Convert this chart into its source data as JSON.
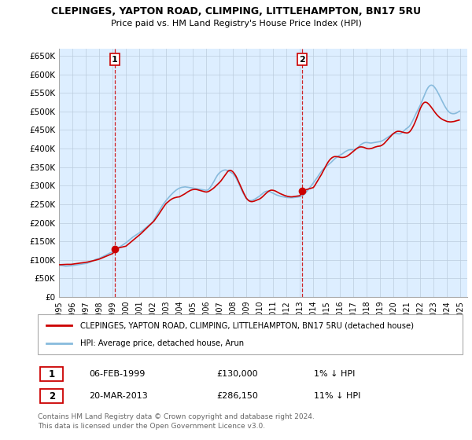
{
  "title": "CLEPINGES, YAPTON ROAD, CLIMPING, LITTLEHAMPTON, BN17 5RU",
  "subtitle": "Price paid vs. HM Land Registry's House Price Index (HPI)",
  "legend_line1": "CLEPINGES, YAPTON ROAD, CLIMPING, LITTLEHAMPTON, BN17 5RU (detached house)",
  "legend_line2": "HPI: Average price, detached house, Arun",
  "footer1": "Contains HM Land Registry data © Crown copyright and database right 2024.",
  "footer2": "This data is licensed under the Open Government Licence v3.0.",
  "annotation1": {
    "label": "1",
    "date": "06-FEB-1999",
    "price": "£130,000",
    "hpi": "1% ↓ HPI"
  },
  "annotation2": {
    "label": "2",
    "date": "20-MAR-2013",
    "price": "£286,150",
    "hpi": "11% ↓ HPI"
  },
  "ytick_labels": [
    "£0",
    "£50K",
    "£100K",
    "£150K",
    "£200K",
    "£250K",
    "£300K",
    "£350K",
    "£400K",
    "£450K",
    "£500K",
    "£550K",
    "£600K",
    "£650K"
  ],
  "ytick_values": [
    0,
    50000,
    100000,
    150000,
    200000,
    250000,
    300000,
    350000,
    400000,
    450000,
    500000,
    550000,
    600000,
    650000
  ],
  "ylim": [
    0,
    670000
  ],
  "xlim_start": 1995.0,
  "xlim_end": 2025.5,
  "price_line_color": "#cc0000",
  "hpi_line_color": "#88bbdd",
  "plot_bg_color": "#ddeeff",
  "background_color": "#ffffff",
  "grid_color": "#bbccdd",
  "annotation_box_color": "#cc0000",
  "hpi_data_years": [
    1995.0,
    1995.083,
    1995.167,
    1995.25,
    1995.333,
    1995.417,
    1995.5,
    1995.583,
    1995.667,
    1995.75,
    1995.833,
    1995.917,
    1996.0,
    1996.083,
    1996.167,
    1996.25,
    1996.333,
    1996.417,
    1996.5,
    1996.583,
    1996.667,
    1996.75,
    1996.833,
    1996.917,
    1997.0,
    1997.083,
    1997.167,
    1997.25,
    1997.333,
    1997.417,
    1997.5,
    1997.583,
    1997.667,
    1997.75,
    1997.833,
    1997.917,
    1998.0,
    1998.083,
    1998.167,
    1998.25,
    1998.333,
    1998.417,
    1998.5,
    1998.583,
    1998.667,
    1998.75,
    1998.833,
    1998.917,
    1999.0,
    1999.083,
    1999.167,
    1999.25,
    1999.333,
    1999.417,
    1999.5,
    1999.583,
    1999.667,
    1999.75,
    1999.833,
    1999.917,
    2000.0,
    2000.083,
    2000.167,
    2000.25,
    2000.333,
    2000.417,
    2000.5,
    2000.583,
    2000.667,
    2000.75,
    2000.833,
    2000.917,
    2001.0,
    2001.083,
    2001.167,
    2001.25,
    2001.333,
    2001.417,
    2001.5,
    2001.583,
    2001.667,
    2001.75,
    2001.833,
    2001.917,
    2002.0,
    2002.083,
    2002.167,
    2002.25,
    2002.333,
    2002.417,
    2002.5,
    2002.583,
    2002.667,
    2002.75,
    2002.833,
    2002.917,
    2003.0,
    2003.083,
    2003.167,
    2003.25,
    2003.333,
    2003.417,
    2003.5,
    2003.583,
    2003.667,
    2003.75,
    2003.833,
    2003.917,
    2004.0,
    2004.083,
    2004.167,
    2004.25,
    2004.333,
    2004.417,
    2004.5,
    2004.583,
    2004.667,
    2004.75,
    2004.833,
    2004.917,
    2005.0,
    2005.083,
    2005.167,
    2005.25,
    2005.333,
    2005.417,
    2005.5,
    2005.583,
    2005.667,
    2005.75,
    2005.833,
    2005.917,
    2006.0,
    2006.083,
    2006.167,
    2006.25,
    2006.333,
    2006.417,
    2006.5,
    2006.583,
    2006.667,
    2006.75,
    2006.833,
    2006.917,
    2007.0,
    2007.083,
    2007.167,
    2007.25,
    2007.333,
    2007.417,
    2007.5,
    2007.583,
    2007.667,
    2007.75,
    2007.833,
    2007.917,
    2008.0,
    2008.083,
    2008.167,
    2008.25,
    2008.333,
    2008.417,
    2008.5,
    2008.583,
    2008.667,
    2008.75,
    2008.833,
    2008.917,
    2009.0,
    2009.083,
    2009.167,
    2009.25,
    2009.333,
    2009.417,
    2009.5,
    2009.583,
    2009.667,
    2009.75,
    2009.833,
    2009.917,
    2010.0,
    2010.083,
    2010.167,
    2010.25,
    2010.333,
    2010.417,
    2010.5,
    2010.583,
    2010.667,
    2010.75,
    2010.833,
    2010.917,
    2011.0,
    2011.083,
    2011.167,
    2011.25,
    2011.333,
    2011.417,
    2011.5,
    2011.583,
    2011.667,
    2011.75,
    2011.833,
    2011.917,
    2012.0,
    2012.083,
    2012.167,
    2012.25,
    2012.333,
    2012.417,
    2012.5,
    2012.583,
    2012.667,
    2012.75,
    2012.833,
    2012.917,
    2013.0,
    2013.083,
    2013.167,
    2013.25,
    2013.333,
    2013.417,
    2013.5,
    2013.583,
    2013.667,
    2013.75,
    2013.833,
    2013.917,
    2014.0,
    2014.083,
    2014.167,
    2014.25,
    2014.333,
    2014.417,
    2014.5,
    2014.583,
    2014.667,
    2014.75,
    2014.833,
    2014.917,
    2015.0,
    2015.083,
    2015.167,
    2015.25,
    2015.333,
    2015.417,
    2015.5,
    2015.583,
    2015.667,
    2015.75,
    2015.833,
    2015.917,
    2016.0,
    2016.083,
    2016.167,
    2016.25,
    2016.333,
    2016.417,
    2016.5,
    2016.583,
    2016.667,
    2016.75,
    2016.833,
    2016.917,
    2017.0,
    2017.083,
    2017.167,
    2017.25,
    2017.333,
    2017.417,
    2017.5,
    2017.583,
    2017.667,
    2017.75,
    2017.833,
    2017.917,
    2018.0,
    2018.083,
    2018.167,
    2018.25,
    2018.333,
    2018.417,
    2018.5,
    2018.583,
    2018.667,
    2018.75,
    2018.833,
    2018.917,
    2019.0,
    2019.083,
    2019.167,
    2019.25,
    2019.333,
    2019.417,
    2019.5,
    2019.583,
    2019.667,
    2019.75,
    2019.833,
    2019.917,
    2020.0,
    2020.083,
    2020.167,
    2020.25,
    2020.333,
    2020.417,
    2020.5,
    2020.583,
    2020.667,
    2020.75,
    2020.833,
    2020.917,
    2021.0,
    2021.083,
    2021.167,
    2021.25,
    2021.333,
    2021.417,
    2021.5,
    2021.583,
    2021.667,
    2021.75,
    2021.833,
    2021.917,
    2022.0,
    2022.083,
    2022.167,
    2022.25,
    2022.333,
    2022.417,
    2022.5,
    2022.583,
    2022.667,
    2022.75,
    2022.833,
    2022.917,
    2023.0,
    2023.083,
    2023.167,
    2023.25,
    2023.333,
    2023.417,
    2023.5,
    2023.583,
    2023.667,
    2023.75,
    2023.833,
    2023.917,
    2024.0,
    2024.083,
    2024.167,
    2024.25,
    2024.333,
    2024.417,
    2024.5,
    2024.583,
    2024.667,
    2024.75,
    2024.833,
    2024.917
  ],
  "hpi_data_values": [
    86000,
    85500,
    85000,
    84500,
    84000,
    83500,
    83000,
    83200,
    83500,
    83800,
    84000,
    84200,
    84500,
    85000,
    85500,
    86000,
    86500,
    87000,
    87500,
    88000,
    88500,
    89000,
    89500,
    90000,
    90500,
    91000,
    92000,
    93000,
    94000,
    95500,
    97000,
    98500,
    100000,
    101500,
    102500,
    103000,
    104000,
    105500,
    107000,
    108500,
    110000,
    111500,
    113000,
    114500,
    116000,
    117500,
    119000,
    120000,
    121000,
    123000,
    125000,
    127500,
    130000,
    132000,
    134000,
    136000,
    138000,
    140000,
    142000,
    144000,
    146000,
    148500,
    151000,
    153500,
    156000,
    158500,
    161000,
    163000,
    165000,
    167000,
    169000,
    171000,
    173000,
    175000,
    177000,
    179500,
    182000,
    184500,
    187000,
    189500,
    192000,
    194500,
    197000,
    199500,
    202000,
    207000,
    212000,
    217500,
    223000,
    228000,
    233000,
    238000,
    243000,
    248000,
    252000,
    256000,
    260000,
    263500,
    267000,
    270500,
    274000,
    277000,
    280000,
    283000,
    285500,
    288000,
    290000,
    292000,
    293500,
    294500,
    295500,
    296000,
    296500,
    296800,
    296500,
    296000,
    295500,
    295000,
    294500,
    294000,
    293500,
    293000,
    292500,
    292000,
    291500,
    291000,
    290500,
    290000,
    289500,
    289000,
    288500,
    288000,
    287500,
    288000,
    290000,
    293000,
    297000,
    302000,
    307000,
    312000,
    318000,
    323000,
    328000,
    332000,
    335000,
    337500,
    339500,
    341000,
    342000,
    342500,
    342000,
    341000,
    339500,
    338000,
    336000,
    334000,
    332000,
    328000,
    324000,
    319000,
    313000,
    307000,
    300000,
    293000,
    286500,
    280000,
    275000,
    270000,
    266000,
    263000,
    261000,
    260000,
    260000,
    260500,
    261500,
    263000,
    264500,
    266500,
    268500,
    270500,
    272500,
    275000,
    277500,
    280000,
    282500,
    284000,
    285000,
    285500,
    285000,
    284000,
    282500,
    281000,
    279500,
    278000,
    276500,
    275000,
    274000,
    273000,
    272000,
    271000,
    270500,
    270000,
    269500,
    269000,
    268500,
    268000,
    267800,
    267700,
    267600,
    267700,
    267900,
    268200,
    268500,
    269000,
    269500,
    270000,
    270500,
    271500,
    273000,
    275000,
    277500,
    280500,
    284000,
    287500,
    291500,
    295500,
    299500,
    303500,
    307500,
    311500,
    316000,
    320000,
    324500,
    329000,
    333500,
    337500,
    341500,
    345000,
    348000,
    351000,
    353000,
    355500,
    358000,
    360500,
    363000,
    366000,
    369000,
    372000,
    374500,
    377000,
    379000,
    381000,
    382500,
    384000,
    386000,
    388000,
    390500,
    392500,
    394000,
    395500,
    396500,
    397000,
    397200,
    397000,
    396500,
    397000,
    398500,
    400500,
    403000,
    406000,
    409000,
    411500,
    413500,
    415000,
    416000,
    416500,
    416500,
    416000,
    415500,
    415000,
    415000,
    415500,
    416000,
    416500,
    417000,
    417500,
    418000,
    418500,
    419000,
    420000,
    421500,
    423000,
    425000,
    427000,
    429000,
    431000,
    433000,
    435000,
    437000,
    439000,
    440500,
    441000,
    441000,
    440500,
    440000,
    439500,
    440000,
    441500,
    444000,
    447000,
    450000,
    453000,
    455000,
    457000,
    460000,
    464000,
    469000,
    475000,
    481000,
    487500,
    494000,
    500000,
    506000,
    512000,
    518000,
    525000,
    532000,
    539500,
    547000,
    554000,
    560000,
    565000,
    568500,
    570500,
    571000,
    570000,
    567500,
    564000,
    559500,
    554500,
    549000,
    543000,
    537000,
    531000,
    525000,
    519000,
    513500,
    508500,
    504000,
    500500,
    497500,
    495500,
    494500,
    494000,
    494000,
    494500,
    495500,
    497000,
    499000,
    501000
  ],
  "price_data_years": [
    1995.0,
    1995.1,
    1995.2,
    1995.3,
    1995.4,
    1995.5,
    1995.6,
    1995.7,
    1995.8,
    1995.9,
    1996.0,
    1996.1,
    1996.2,
    1996.3,
    1996.4,
    1996.5,
    1996.6,
    1996.7,
    1996.8,
    1996.9,
    1997.0,
    1997.1,
    1997.2,
    1997.3,
    1997.4,
    1997.5,
    1997.6,
    1997.7,
    1997.8,
    1997.9,
    1998.0,
    1998.1,
    1998.2,
    1998.3,
    1998.4,
    1998.5,
    1998.6,
    1998.7,
    1998.8,
    1998.9,
    1999.0,
    1999.083,
    1999.167,
    2000.0,
    2000.1,
    2000.2,
    2000.3,
    2000.4,
    2000.5,
    2000.6,
    2000.7,
    2000.8,
    2000.9,
    2001.0,
    2001.1,
    2001.2,
    2001.3,
    2001.4,
    2001.5,
    2001.6,
    2001.7,
    2001.8,
    2001.9,
    2002.0,
    2002.1,
    2002.2,
    2002.3,
    2002.4,
    2002.5,
    2002.6,
    2002.7,
    2002.8,
    2002.9,
    2003.0,
    2003.1,
    2003.2,
    2003.3,
    2003.4,
    2003.5,
    2003.6,
    2003.7,
    2003.8,
    2003.9,
    2004.0,
    2004.1,
    2004.2,
    2004.3,
    2004.4,
    2004.5,
    2004.6,
    2004.7,
    2004.8,
    2004.9,
    2005.0,
    2005.1,
    2005.2,
    2005.3,
    2005.4,
    2005.5,
    2005.6,
    2005.7,
    2005.8,
    2005.9,
    2006.0,
    2006.1,
    2006.2,
    2006.3,
    2006.4,
    2006.5,
    2006.6,
    2006.7,
    2006.8,
    2006.9,
    2007.0,
    2007.1,
    2007.2,
    2007.3,
    2007.4,
    2007.5,
    2007.6,
    2007.7,
    2007.8,
    2007.9,
    2008.0,
    2008.1,
    2008.2,
    2008.3,
    2008.4,
    2008.5,
    2008.6,
    2008.7,
    2008.8,
    2008.9,
    2009.0,
    2009.1,
    2009.2,
    2009.3,
    2009.4,
    2009.5,
    2009.6,
    2009.7,
    2009.8,
    2009.9,
    2010.0,
    2010.1,
    2010.2,
    2010.3,
    2010.4,
    2010.5,
    2010.6,
    2010.7,
    2010.8,
    2010.9,
    2011.0,
    2011.1,
    2011.2,
    2011.3,
    2011.4,
    2011.5,
    2011.6,
    2011.7,
    2011.8,
    2011.9,
    2012.0,
    2012.1,
    2012.2,
    2012.3,
    2012.4,
    2012.5,
    2012.6,
    2012.7,
    2012.8,
    2012.9,
    2013.0,
    2013.083,
    2013.167,
    2014.0,
    2014.1,
    2014.2,
    2014.3,
    2014.4,
    2014.5,
    2014.6,
    2014.7,
    2014.8,
    2014.9,
    2015.0,
    2015.1,
    2015.2,
    2015.3,
    2015.4,
    2015.5,
    2015.6,
    2015.7,
    2015.8,
    2015.9,
    2016.0,
    2016.1,
    2016.2,
    2016.3,
    2016.4,
    2016.5,
    2016.6,
    2016.7,
    2016.8,
    2016.9,
    2017.0,
    2017.1,
    2017.2,
    2017.3,
    2017.4,
    2017.5,
    2017.6,
    2017.7,
    2017.8,
    2017.9,
    2018.0,
    2018.1,
    2018.2,
    2018.3,
    2018.4,
    2018.5,
    2018.6,
    2018.7,
    2018.8,
    2018.9,
    2019.0,
    2019.1,
    2019.2,
    2019.3,
    2019.4,
    2019.5,
    2019.6,
    2019.7,
    2019.8,
    2019.9,
    2020.0,
    2020.1,
    2020.2,
    2020.3,
    2020.4,
    2020.5,
    2020.6,
    2020.7,
    2020.8,
    2020.9,
    2021.0,
    2021.1,
    2021.2,
    2021.3,
    2021.4,
    2021.5,
    2021.6,
    2021.7,
    2021.8,
    2021.9,
    2022.0,
    2022.1,
    2022.2,
    2022.3,
    2022.4,
    2022.5,
    2022.6,
    2022.7,
    2022.8,
    2022.9,
    2023.0,
    2023.1,
    2023.2,
    2023.3,
    2023.4,
    2023.5,
    2023.6,
    2023.7,
    2023.8,
    2023.9,
    2024.0,
    2024.1,
    2024.2,
    2024.3,
    2024.4,
    2024.5,
    2024.6,
    2024.7,
    2024.8,
    2024.9
  ],
  "price_data_values": [
    87000,
    87200,
    87400,
    87600,
    87800,
    88000,
    88000,
    88000,
    88000,
    88000,
    88500,
    89000,
    89500,
    90000,
    90500,
    91000,
    91500,
    92000,
    92500,
    93000,
    93500,
    94000,
    94800,
    95600,
    96400,
    97200,
    98000,
    99000,
    100000,
    101000,
    102000,
    103500,
    105000,
    106500,
    108000,
    109500,
    111000,
    112500,
    114000,
    115500,
    117000,
    120000,
    130000,
    137000,
    140000,
    143000,
    146000,
    149000,
    152000,
    155000,
    158000,
    161000,
    164000,
    167000,
    170000,
    173500,
    177000,
    180500,
    184000,
    187500,
    191000,
    194500,
    198000,
    201500,
    205000,
    210000,
    215000,
    220000,
    225500,
    231000,
    236500,
    242000,
    247000,
    252000,
    255000,
    258000,
    261000,
    263500,
    265500,
    267000,
    268000,
    269000,
    269500,
    270000,
    272000,
    274000,
    276000,
    278000,
    280500,
    283000,
    285000,
    287000,
    288500,
    289500,
    290000,
    290000,
    289500,
    288500,
    287500,
    286500,
    285500,
    284500,
    283500,
    283000,
    283500,
    285000,
    287000,
    289500,
    292000,
    295000,
    298500,
    302000,
    305500,
    309000,
    313000,
    318000,
    323000,
    328000,
    333000,
    338000,
    341000,
    341500,
    340000,
    337000,
    332500,
    327000,
    320000,
    312000,
    304000,
    296000,
    288000,
    280000,
    273000,
    266000,
    262000,
    259000,
    257500,
    257000,
    257500,
    258500,
    260000,
    261500,
    263000,
    264500,
    267000,
    270000,
    273500,
    277000,
    280500,
    283500,
    286000,
    287500,
    288000,
    287500,
    286500,
    285000,
    283000,
    281000,
    279000,
    277500,
    276000,
    274500,
    273000,
    272000,
    271000,
    270500,
    270000,
    270000,
    270500,
    271000,
    271500,
    272000,
    272500,
    273000,
    280000,
    286150,
    295000,
    300000,
    306000,
    312000,
    318000,
    324000,
    330000,
    337000,
    344000,
    351000,
    357500,
    363500,
    368500,
    372500,
    375500,
    377500,
    378500,
    378500,
    378000,
    377500,
    376500,
    376000,
    376000,
    376500,
    377500,
    379000,
    381500,
    384000,
    387000,
    390000,
    393000,
    396000,
    399000,
    401500,
    403500,
    404500,
    404500,
    404000,
    403000,
    401500,
    400000,
    399500,
    399500,
    400000,
    401000,
    402500,
    404000,
    405000,
    406000,
    406500,
    407000,
    408500,
    411000,
    414000,
    418000,
    422000,
    426000,
    430000,
    434000,
    438000,
    441000,
    443500,
    445500,
    446500,
    446500,
    446000,
    445000,
    444000,
    443000,
    442500,
    442000,
    443000,
    445500,
    450000,
    456000,
    463000,
    471000,
    480000,
    490000,
    499500,
    509000,
    516000,
    521500,
    524500,
    525000,
    523500,
    520500,
    516500,
    512000,
    507000,
    502000,
    497000,
    492500,
    488500,
    485000,
    482000,
    479500,
    477500,
    476000,
    474500,
    473000,
    472500,
    472000,
    472000,
    472500,
    473000,
    474000,
    475000,
    476000,
    477000
  ]
}
